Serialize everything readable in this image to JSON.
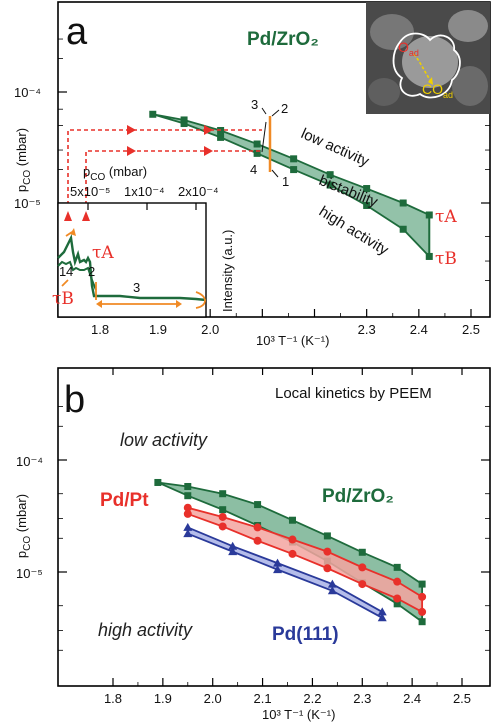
{
  "panel_a": {
    "panel_label": "a",
    "material_label": "Pd/ZrO₂",
    "y_axis_title": "p₁",
    "y_label_main": "p",
    "y_label_sub": "CO",
    "y_label_unit": "(mbar)",
    "x_label": "10³ T⁻¹ (K⁻¹)",
    "y_tick_labels": [
      "10⁻⁴",
      "10⁻⁵"
    ],
    "x_tick_labels": [
      "1.9",
      "2.0",
      "2.3",
      "2.4",
      "2.5"
    ],
    "regime_labels": [
      "low activity",
      "bistability",
      "high activity"
    ],
    "tau_labels": [
      "τA",
      "τB"
    ],
    "point_labels": [
      "1",
      "2",
      "3",
      "4"
    ],
    "inset_x_label": "p₁",
    "inset_x_main": "p",
    "inset_x_sub": "CO",
    "inset_x_unit": "(mbar)",
    "inset_x_ticks": [
      "5x10⁻⁵",
      "1x10⁻⁴",
      "2x10⁻⁴"
    ],
    "inset_y_label": "Intensity (a.u.)",
    "inset_tick_labels": [
      "1.8",
      "1.9",
      "2.0"
    ],
    "inset_point_labels": [
      "1",
      "4",
      "2",
      "3"
    ],
    "image_labels": {
      "o_ad": "O",
      "o_sub": "ad",
      "co_ad": "CO",
      "co_sub": "ad"
    }
  },
  "panel_b": {
    "panel_label": "b",
    "title": "Local kinetics by PEEM",
    "y_label_main": "p",
    "y_label_sub": "CO",
    "y_label_unit": "(mbar)",
    "x_label": "10³ T⁻¹ (K⁻¹)",
    "y_tick_labels": [
      "10⁻⁴",
      "10⁻⁵"
    ],
    "x_tick_labels": [
      "1.8",
      "1.9",
      "2.0",
      "2.1",
      "2.2",
      "2.3",
      "2.4",
      "2.5"
    ],
    "low_activity": "low activity",
    "high_activity": "high activity",
    "series_labels": {
      "pdzro2": "Pd/ZrO₂",
      "pdpt": "Pd/Pt",
      "pd111": "Pd(111)"
    }
  },
  "colors": {
    "green": "#1e6b3c",
    "green_fill": "#6fae8c",
    "red": "#e8302a",
    "red_fill": "#f3a5a0",
    "blue": "#2a3a9a",
    "blue_fill": "#a8b2e6",
    "orange": "#f08a25"
  },
  "chart_data": [
    {
      "type": "area",
      "panel": "a",
      "xlabel": "10³ T⁻¹ (K⁻¹)",
      "ylabel": "pCO (mbar)",
      "yscale": "log",
      "xlim": [
        1.58,
        2.55
      ],
      "ylim": [
        1.4e-06,
        0.0004
      ],
      "series": [
        {
          "name": "τA",
          "color": "#1e6b3c",
          "x": [
            1.89,
            1.95,
            2.02,
            2.09,
            2.16,
            2.23,
            2.3,
            2.37,
            2.42
          ],
          "y": [
            6.3e-05,
            5.6e-05,
            4.5e-05,
            3.4e-05,
            2.5e-05,
            1.8e-05,
            1.35e-05,
            1e-05,
            7.8e-06
          ]
        },
        {
          "name": "τB",
          "color": "#1e6b3c",
          "x": [
            1.89,
            1.95,
            2.02,
            2.09,
            2.16,
            2.23,
            2.3,
            2.37,
            2.42
          ],
          "y": [
            6.3e-05,
            5.2e-05,
            3.9e-05,
            2.8e-05,
            2e-05,
            1.45e-05,
            9.5e-06,
            5.8e-06,
            3.3e-06
          ]
        }
      ],
      "markers": {
        "x": 2.09,
        "y_top": 3.5e-05,
        "y_bot": 2.2e-05
      }
    },
    {
      "type": "area",
      "panel": "b",
      "title": "Local kinetics by PEEM",
      "xlabel": "10³ T⁻¹ (K⁻¹)",
      "ylabel": "pCO (mbar)",
      "yscale": "log",
      "xlim": [
        1.7,
        2.55
      ],
      "ylim": [
        1.4e-06,
        0.0004
      ],
      "series": [
        {
          "name": "Pd/ZrO₂",
          "color": "#1e6b3c",
          "x": [
            1.89,
            1.95,
            2.02,
            2.09,
            2.16,
            2.23,
            2.3,
            2.37,
            2.42
          ],
          "y_upper": [
            6.3e-05,
            5.8e-05,
            5e-05,
            4e-05,
            2.9e-05,
            2.1e-05,
            1.5e-05,
            1.1e-05,
            7.8e-06
          ],
          "y_lower": [
            6.3e-05,
            4.8e-05,
            3.6e-05,
            2.6e-05,
            1.85e-05,
            1.25e-05,
            8e-06,
            5.2e-06,
            3.6e-06
          ]
        },
        {
          "name": "Pd/Pt",
          "color": "#e8302a",
          "x": [
            1.95,
            2.02,
            2.09,
            2.16,
            2.23,
            2.3,
            2.37,
            2.42
          ],
          "y_upper": [
            3.75e-05,
            3.1e-05,
            2.5e-05,
            1.95e-05,
            1.52e-05,
            1.1e-05,
            8.2e-06,
            6e-06
          ],
          "y_lower": [
            3.3e-05,
            2.55e-05,
            1.9e-05,
            1.45e-05,
            1.08e-05,
            7.8e-06,
            5.8e-06,
            4.4e-06
          ]
        },
        {
          "name": "Pd(111)",
          "color": "#2a3a9a",
          "x": [
            1.95,
            2.04,
            2.13,
            2.24,
            2.34
          ],
          "y_upper": [
            2.5e-05,
            1.7e-05,
            1.2e-05,
            7.8e-06,
            4.4e-06
          ],
          "y_lower": [
            2.2e-05,
            1.52e-05,
            1.05e-05,
            6.8e-06,
            3.9e-06
          ]
        }
      ]
    }
  ]
}
